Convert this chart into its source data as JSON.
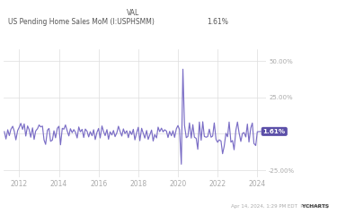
{
  "title_label": "VAL",
  "series_label": "US Pending Home Sales MoM (I:USPHSMM)",
  "current_value": "1.61%",
  "line_color": "#7B6EC6",
  "label_box_color": "#5B4FA8",
  "label_text_color": "#ffffff",
  "background_color": "#ffffff",
  "grid_color": "#dddddd",
  "axis_label_color": "#aaaaaa",
  "ylim": [
    -30,
    58
  ],
  "xlim_year_start": 2011.2,
  "xlim_year_end": 2024.45,
  "xtick_years": [
    2012,
    2014,
    2016,
    2018,
    2020,
    2022,
    2024
  ],
  "ytick_values": [
    -25,
    0,
    25,
    50
  ],
  "ytick_labels": [
    "-25.00%",
    "",
    "25.00%",
    "50.00%"
  ],
  "footer_left": "Apr 14, 2024, 1:29 PM EDT  Powered by ",
  "footer_ycharts": "YCHARTS",
  "line_width": 0.85,
  "data": [
    [
      2011.25,
      1.5
    ],
    [
      2011.33,
      -3.5
    ],
    [
      2011.42,
      2.8
    ],
    [
      2011.5,
      -1.2
    ],
    [
      2011.58,
      3.1
    ],
    [
      2011.67,
      5.2
    ],
    [
      2011.75,
      1.8
    ],
    [
      2011.83,
      -4.1
    ],
    [
      2011.92,
      2.3
    ],
    [
      2012.0,
      4.5
    ],
    [
      2012.08,
      7.2
    ],
    [
      2012.17,
      3.1
    ],
    [
      2012.25,
      6.8
    ],
    [
      2012.33,
      -1.5
    ],
    [
      2012.42,
      5.4
    ],
    [
      2012.5,
      2.9
    ],
    [
      2012.58,
      -2.3
    ],
    [
      2012.67,
      4.1
    ],
    [
      2012.75,
      -3.8
    ],
    [
      2012.83,
      2.0
    ],
    [
      2012.92,
      3.5
    ],
    [
      2013.0,
      6.1
    ],
    [
      2013.08,
      4.8
    ],
    [
      2013.17,
      5.3
    ],
    [
      2013.25,
      -4.2
    ],
    [
      2013.33,
      -7.2
    ],
    [
      2013.42,
      2.5
    ],
    [
      2013.5,
      3.7
    ],
    [
      2013.58,
      -5.1
    ],
    [
      2013.67,
      -4.3
    ],
    [
      2013.75,
      2.1
    ],
    [
      2013.83,
      -2.7
    ],
    [
      2013.92,
      3.8
    ],
    [
      2014.0,
      5.2
    ],
    [
      2014.08,
      -7.5
    ],
    [
      2014.17,
      3.8
    ],
    [
      2014.25,
      3.2
    ],
    [
      2014.33,
      6.1
    ],
    [
      2014.42,
      1.9
    ],
    [
      2014.5,
      -1.4
    ],
    [
      2014.58,
      3.5
    ],
    [
      2014.67,
      0.8
    ],
    [
      2014.75,
      2.9
    ],
    [
      2014.83,
      1.2
    ],
    [
      2014.92,
      -2.8
    ],
    [
      2015.0,
      4.7
    ],
    [
      2015.08,
      1.4
    ],
    [
      2015.17,
      3.1
    ],
    [
      2015.25,
      -2.5
    ],
    [
      2015.33,
      3.3
    ],
    [
      2015.42,
      1.7
    ],
    [
      2015.5,
      -2.1
    ],
    [
      2015.58,
      1.5
    ],
    [
      2015.67,
      -1.3
    ],
    [
      2015.75,
      2.8
    ],
    [
      2015.83,
      -3.9
    ],
    [
      2015.92,
      1.1
    ],
    [
      2016.0,
      3.7
    ],
    [
      2016.08,
      -2.8
    ],
    [
      2016.17,
      5.4
    ],
    [
      2016.25,
      1.6
    ],
    [
      2016.33,
      -1.2
    ],
    [
      2016.42,
      2.9
    ],
    [
      2016.5,
      -3.7
    ],
    [
      2016.58,
      1.4
    ],
    [
      2016.67,
      -0.8
    ],
    [
      2016.75,
      2.3
    ],
    [
      2016.83,
      -1.9
    ],
    [
      2016.92,
      0.7
    ],
    [
      2017.0,
      5.2
    ],
    [
      2017.08,
      1.8
    ],
    [
      2017.17,
      -1.5
    ],
    [
      2017.25,
      3.4
    ],
    [
      2017.33,
      0.2
    ],
    [
      2017.42,
      2.1
    ],
    [
      2017.5,
      -2.6
    ],
    [
      2017.58,
      1.9
    ],
    [
      2017.67,
      -0.5
    ],
    [
      2017.75,
      3.1
    ],
    [
      2017.83,
      -4.1
    ],
    [
      2017.92,
      0.9
    ],
    [
      2018.0,
      4.5
    ],
    [
      2018.08,
      -4.7
    ],
    [
      2018.17,
      3.8
    ],
    [
      2018.25,
      0.4
    ],
    [
      2018.33,
      -2.9
    ],
    [
      2018.42,
      2.3
    ],
    [
      2018.5,
      -3.8
    ],
    [
      2018.58,
      -0.7
    ],
    [
      2018.67,
      2.6
    ],
    [
      2018.75,
      -4.9
    ],
    [
      2018.83,
      -0.5
    ],
    [
      2018.92,
      -2.8
    ],
    [
      2019.0,
      4.6
    ],
    [
      2019.08,
      1.5
    ],
    [
      2019.17,
      3.9
    ],
    [
      2019.25,
      1.4
    ],
    [
      2019.33,
      2.8
    ],
    [
      2019.42,
      1.9
    ],
    [
      2019.5,
      -2.5
    ],
    [
      2019.58,
      1.7
    ],
    [
      2019.67,
      -1.3
    ],
    [
      2019.75,
      2.1
    ],
    [
      2019.83,
      -2.4
    ],
    [
      2019.92,
      3.5
    ],
    [
      2020.0,
      5.7
    ],
    [
      2020.08,
      2.9
    ],
    [
      2020.17,
      -20.8
    ],
    [
      2020.25,
      44.3
    ],
    [
      2020.33,
      5.9
    ],
    [
      2020.42,
      -2.6
    ],
    [
      2020.5,
      -1.8
    ],
    [
      2020.58,
      7.5
    ],
    [
      2020.67,
      -2.9
    ],
    [
      2020.75,
      6.3
    ],
    [
      2020.83,
      -2.3
    ],
    [
      2020.92,
      -3.1
    ],
    [
      2021.0,
      -10.6
    ],
    [
      2021.08,
      8.1
    ],
    [
      2021.17,
      -4.4
    ],
    [
      2021.25,
      8.3
    ],
    [
      2021.33,
      -1.8
    ],
    [
      2021.42,
      -2.3
    ],
    [
      2021.5,
      -1.9
    ],
    [
      2021.58,
      3.2
    ],
    [
      2021.67,
      -2.3
    ],
    [
      2021.75,
      -1.5
    ],
    [
      2021.83,
      7.5
    ],
    [
      2021.92,
      -3.8
    ],
    [
      2022.0,
      -5.8
    ],
    [
      2022.08,
      -4.1
    ],
    [
      2022.17,
      -4.9
    ],
    [
      2022.25,
      -13.6
    ],
    [
      2022.33,
      -8.6
    ],
    [
      2022.42,
      0.4
    ],
    [
      2022.5,
      -2.0
    ],
    [
      2022.58,
      8.1
    ],
    [
      2022.67,
      -5.7
    ],
    [
      2022.75,
      -4.6
    ],
    [
      2022.83,
      -10.9
    ],
    [
      2022.92,
      2.5
    ],
    [
      2023.0,
      8.1
    ],
    [
      2023.08,
      0.8
    ],
    [
      2023.17,
      -5.2
    ],
    [
      2023.25,
      0.3
    ],
    [
      2023.33,
      0.9
    ],
    [
      2023.42,
      -2.1
    ],
    [
      2023.5,
      6.7
    ],
    [
      2023.58,
      -5.6
    ],
    [
      2023.67,
      4.0
    ],
    [
      2023.75,
      7.4
    ],
    [
      2023.83,
      -6.6
    ],
    [
      2023.92,
      -8.0
    ],
    [
      2024.0,
      1.4
    ],
    [
      2024.17,
      1.61
    ]
  ]
}
